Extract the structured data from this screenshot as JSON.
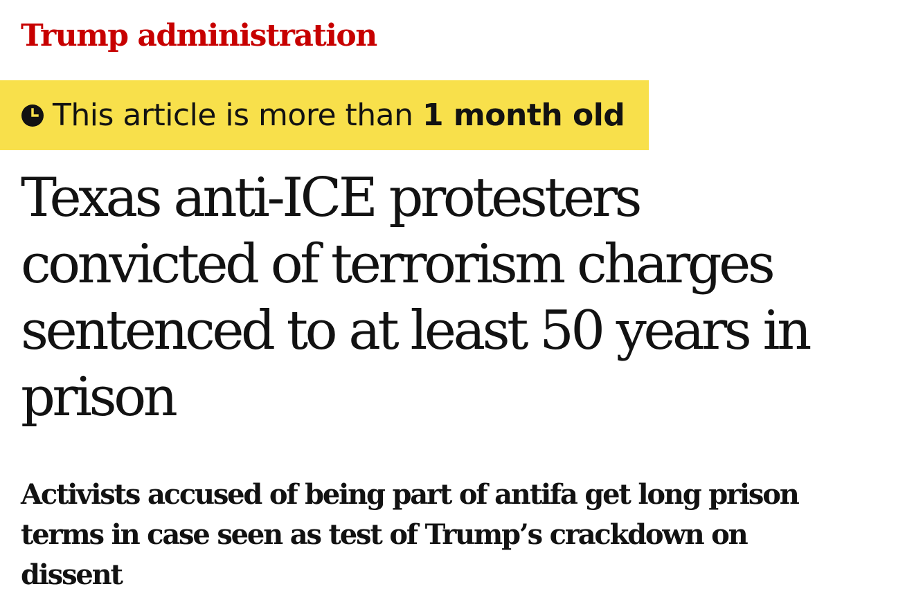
{
  "section": {
    "label": "Trump administration",
    "color": "#c70000"
  },
  "age_banner": {
    "prefix": "This article is more than ",
    "emphasis": "1 month old",
    "background": "#f8e04b",
    "icon": "clock-icon"
  },
  "headline": {
    "lines": [
      "Texas anti-ICE protesters",
      "convicted of terrorism charges",
      "sentenced to at least 50 years in",
      "prison"
    ]
  },
  "standfirst": {
    "lines": [
      "Activists accused of being part of antifa get long prison",
      "terms in case seen as test of Trump’s crackdown on",
      "dissent"
    ]
  }
}
